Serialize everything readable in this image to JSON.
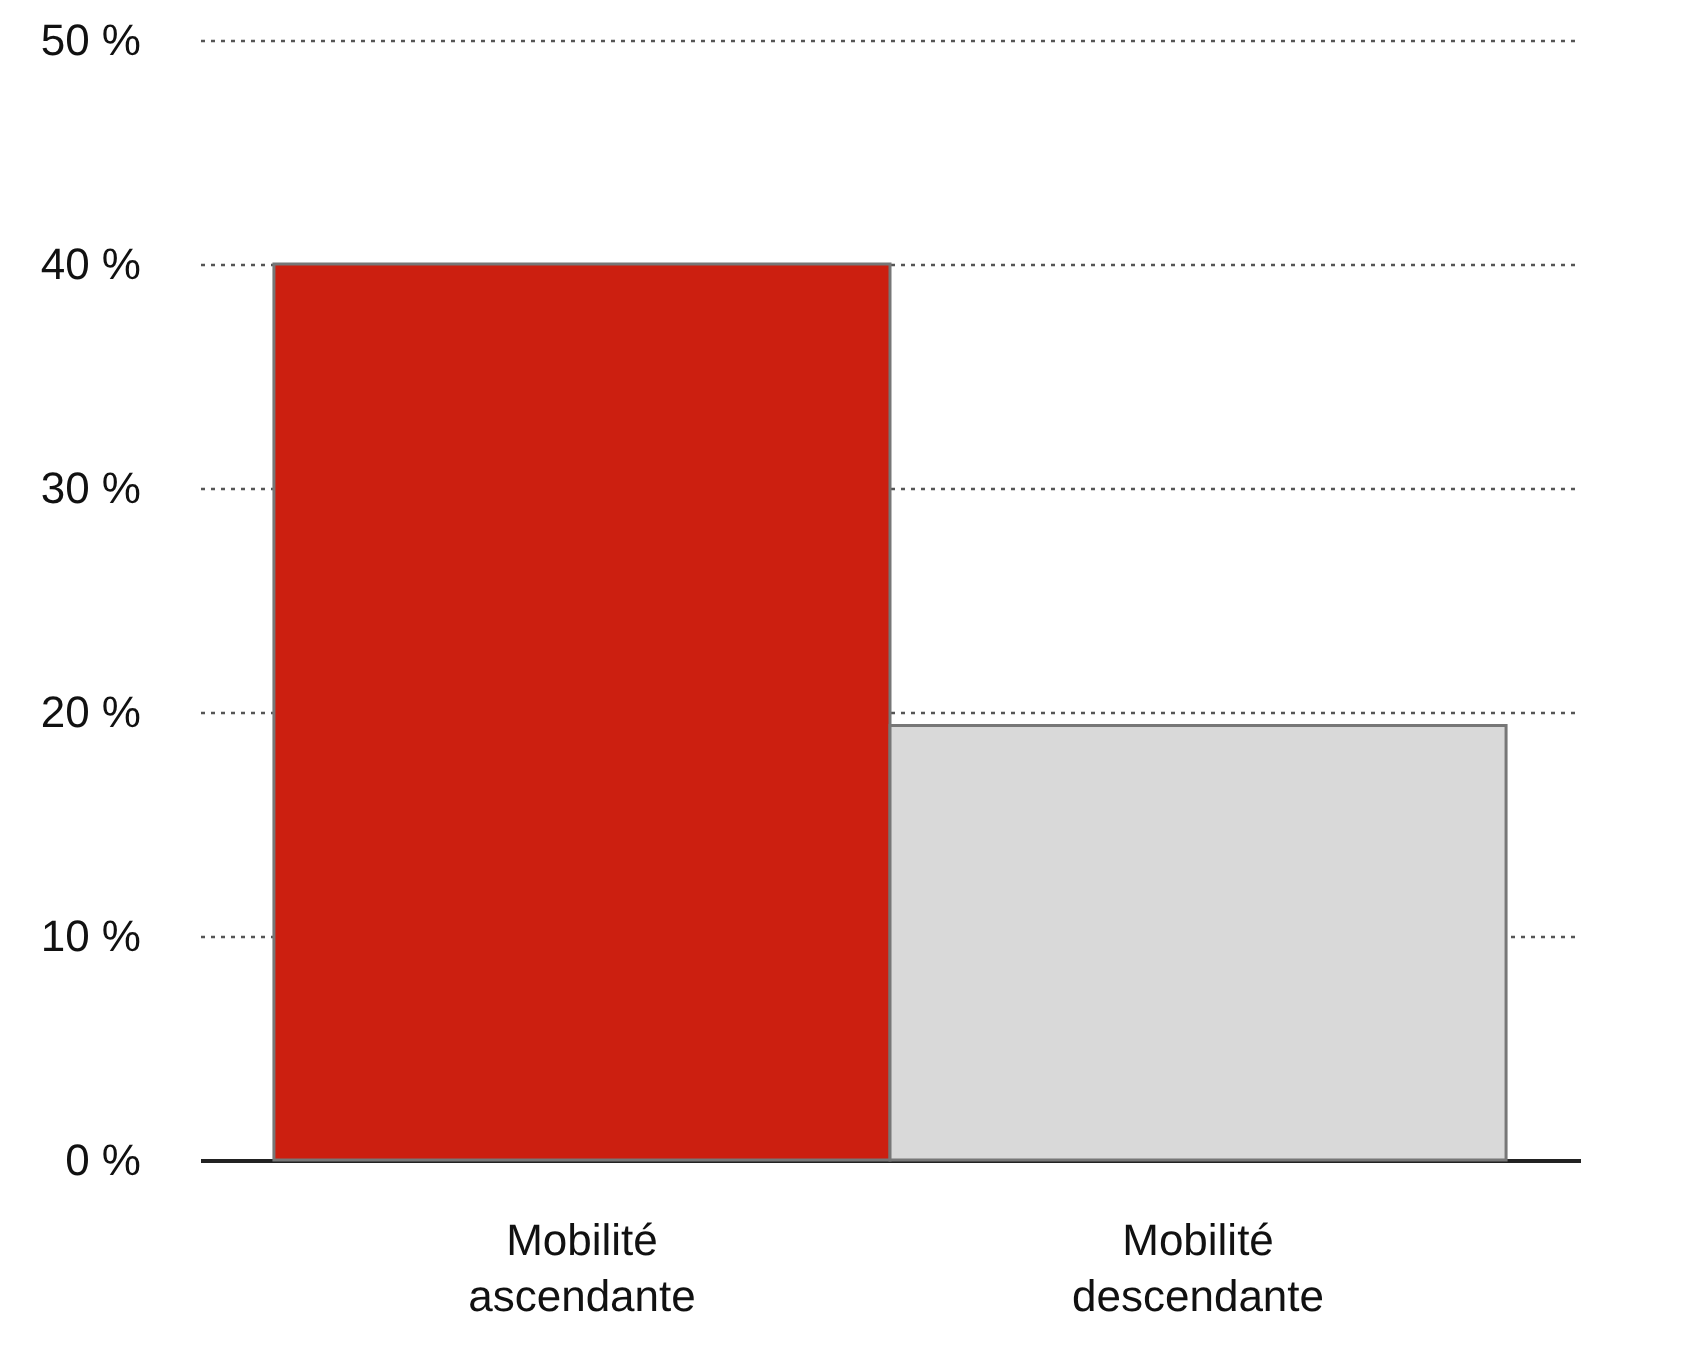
{
  "chart_data": {
    "type": "bar",
    "categories": [
      "Mobilité ascendante",
      "Mobilité descendante"
    ],
    "values": [
      40,
      19.4
    ],
    "colors": [
      "#cc1f10",
      "#d9d9d9"
    ],
    "ylim": [
      0,
      50
    ],
    "yticks": [
      {
        "value": 0,
        "label": "0 %"
      },
      {
        "value": 10,
        "label": "10 %"
      },
      {
        "value": 20,
        "label": "20 %"
      },
      {
        "value": 30,
        "label": "30 %"
      },
      {
        "value": 40,
        "label": "40 %"
      },
      {
        "value": 50,
        "label": "50 %"
      }
    ],
    "grid": "y"
  }
}
